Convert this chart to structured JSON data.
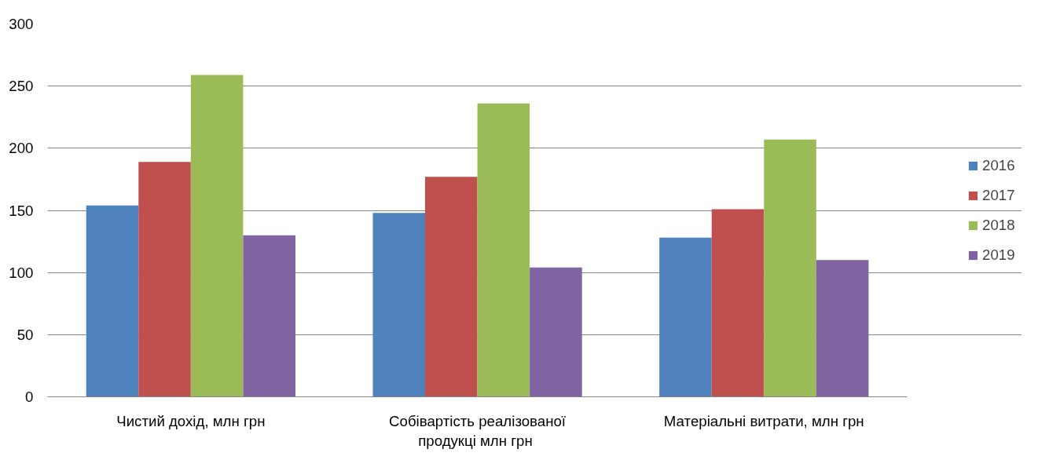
{
  "chart_data": {
    "type": "bar",
    "categories": [
      "Чистий дохід, млн грн",
      "Собівартість реалізованої продукці  млн грн",
      "Матеріальні витрати, млн грн"
    ],
    "series": [
      {
        "name": "2016",
        "color": "#4f81bd",
        "values": [
          154,
          148,
          128
        ]
      },
      {
        "name": "2017",
        "color": "#c0504d",
        "values": [
          189,
          177,
          151
        ]
      },
      {
        "name": "2018",
        "color": "#9bbb59",
        "values": [
          259,
          236,
          207
        ]
      },
      {
        "name": "2019",
        "color": "#8064a2",
        "values": [
          130,
          104,
          110
        ]
      }
    ],
    "ylim": [
      0,
      300
    ],
    "yticks": [
      0,
      50,
      100,
      150,
      200,
      250,
      300
    ],
    "grid": "y",
    "legend": "right"
  }
}
